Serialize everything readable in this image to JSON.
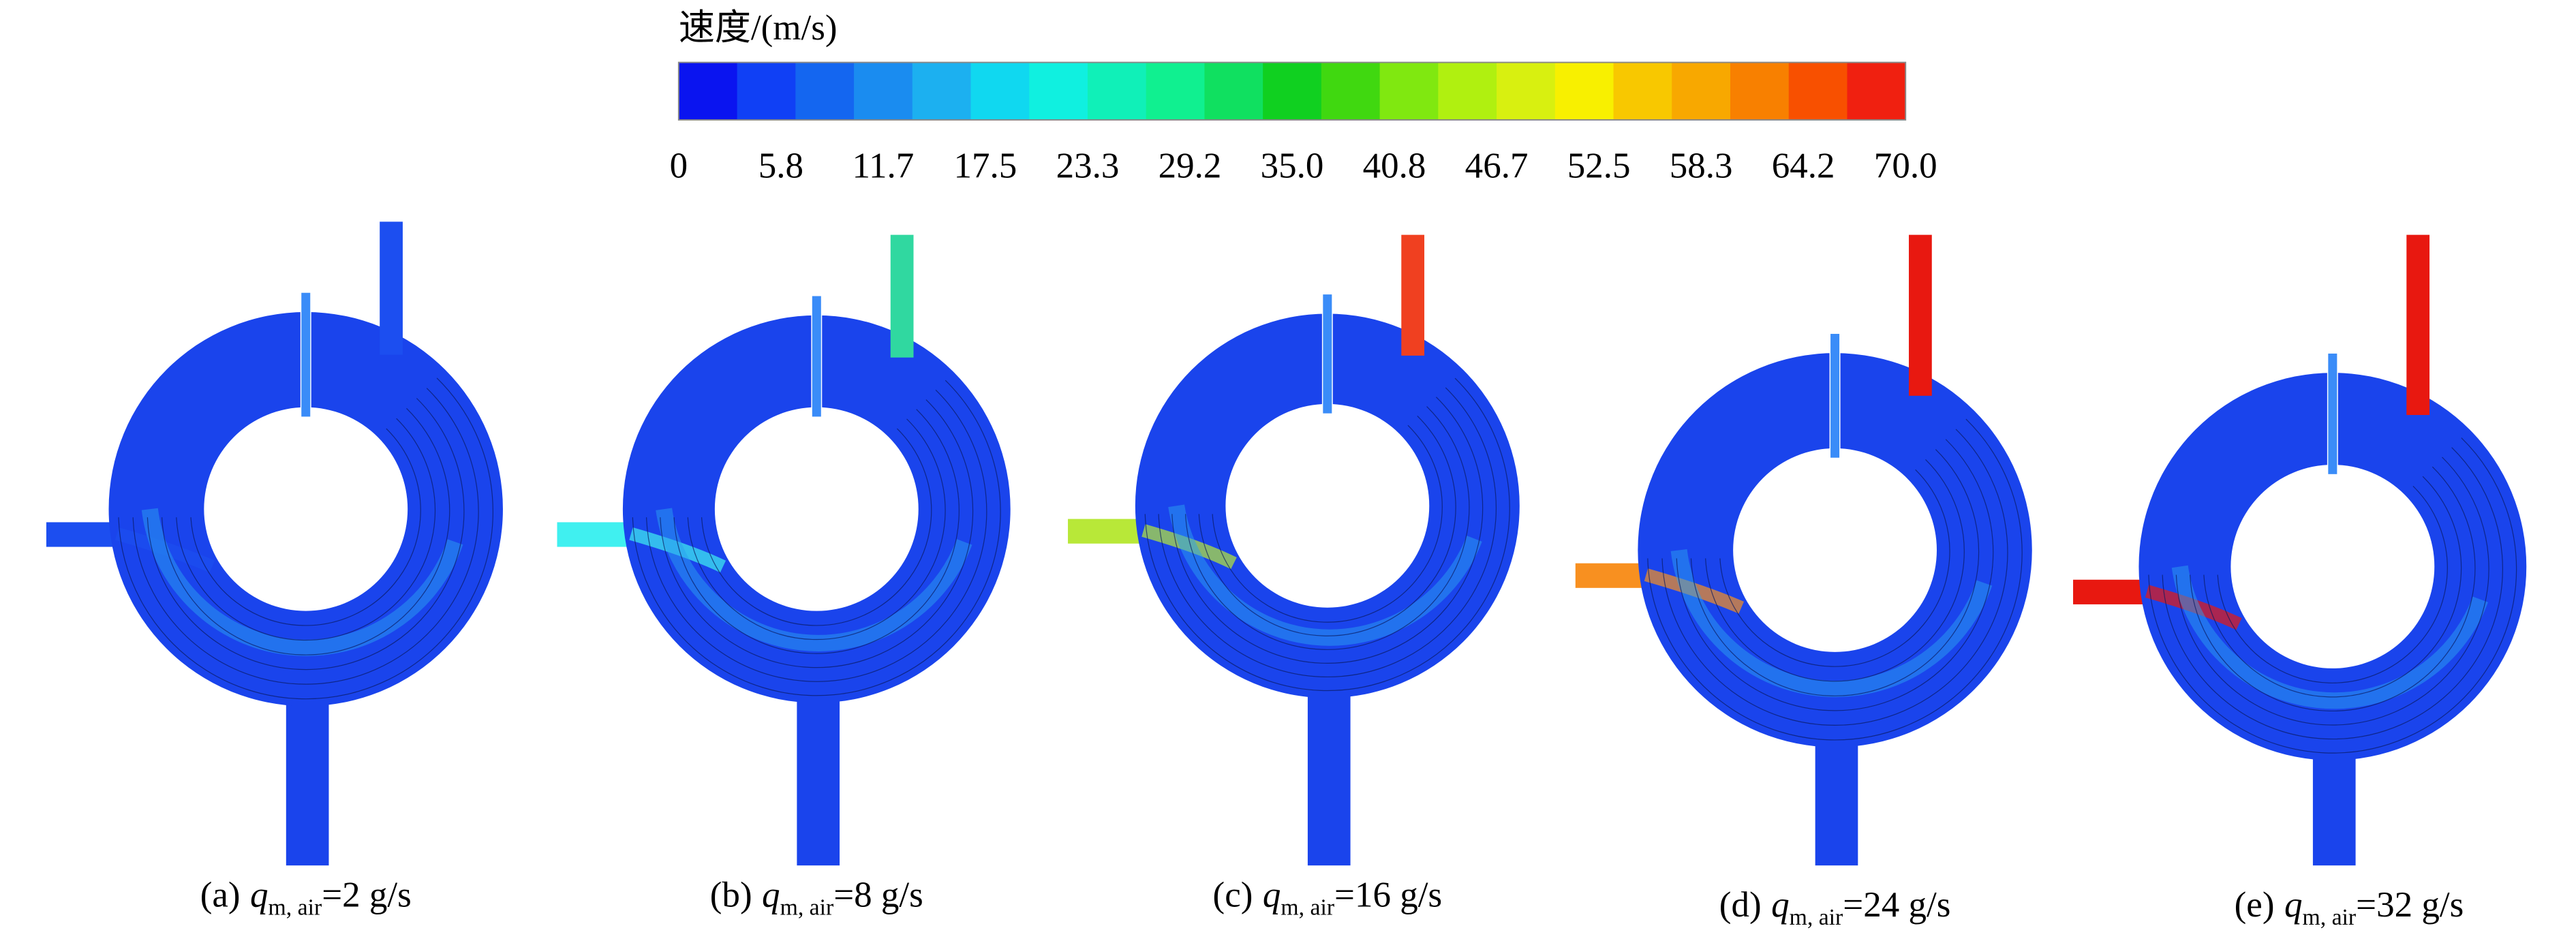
{
  "colorbar": {
    "title": "速度/(m/s)",
    "ticks": [
      "0",
      "5.8",
      "11.7",
      "17.5",
      "23.3",
      "29.2",
      "35.0",
      "40.8",
      "46.7",
      "52.5",
      "58.3",
      "64.2",
      "70.0"
    ]
  },
  "panels": [
    {
      "label": "(a)",
      "symbol": "q",
      "subscript": "m, air",
      "rest": "=2 g/s"
    },
    {
      "label": "(b)",
      "symbol": "q",
      "subscript": "m, air",
      "rest": "=8 g/s"
    },
    {
      "label": "(c)",
      "symbol": "q",
      "subscript": "m, air",
      "rest": "=16 g/s"
    },
    {
      "label": "(d)",
      "symbol": "q",
      "subscript": "m, air",
      "rest": "=24 g/s"
    },
    {
      "label": "(e)",
      "symbol": "q",
      "subscript": "m, air",
      "rest": "=32 g/s"
    }
  ]
}
